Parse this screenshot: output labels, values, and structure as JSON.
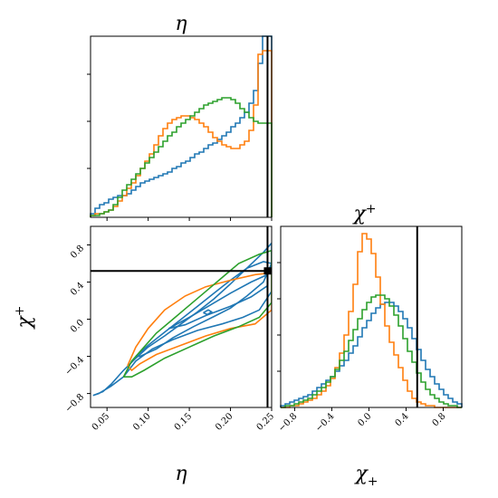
{
  "colors": {
    "blue": "#1f77b4",
    "orange": "#ff7f0e",
    "green": "#2ca02c",
    "truth": "#000000"
  },
  "chart_data": {
    "type": "corner",
    "parameters": [
      {
        "name": "eta",
        "label": "η",
        "range": [
          0.03,
          0.25
        ],
        "ticks": [
          0.05,
          0.1,
          0.15,
          0.2,
          0.25
        ],
        "tick_labels": [
          "0.05",
          "0.10",
          "0.15",
          "0.20",
          "0.25"
        ],
        "truth": 0.245
      },
      {
        "name": "chi_plus",
        "label": "χ",
        "label_sup": "+",
        "label_sub": "+",
        "range": [
          -0.95,
          1.0
        ],
        "ticks": [
          -0.8,
          -0.4,
          0.0,
          0.4,
          0.8
        ],
        "tick_labels": [
          "−0.8",
          "−0.4",
          "0.0",
          "0.4",
          "0.8"
        ],
        "truth": 0.52
      }
    ],
    "panels": {
      "eta_marginal": {
        "title_main": "η",
        "bins": [
          0.03,
          0.25,
          40
        ],
        "ylim": [
          0,
          1.0
        ],
        "series": [
          {
            "color_key": "blue",
            "values": [
              0.02,
              0.05,
              0.07,
              0.08,
              0.1,
              0.11,
              0.12,
              0.12,
              0.13,
              0.15,
              0.17,
              0.19,
              0.2,
              0.21,
              0.22,
              0.23,
              0.24,
              0.25,
              0.27,
              0.28,
              0.3,
              0.31,
              0.33,
              0.35,
              0.36,
              0.38,
              0.4,
              0.41,
              0.43,
              0.45,
              0.47,
              0.5,
              0.52,
              0.55,
              0.58,
              0.63,
              0.7,
              0.85,
              1.0,
              1.0
            ]
          },
          {
            "color_key": "orange",
            "values": [
              0.01,
              0.02,
              0.02,
              0.03,
              0.04,
              0.06,
              0.09,
              0.12,
              0.16,
              0.19,
              0.23,
              0.27,
              0.31,
              0.35,
              0.4,
              0.45,
              0.49,
              0.52,
              0.54,
              0.55,
              0.56,
              0.56,
              0.55,
              0.54,
              0.52,
              0.5,
              0.47,
              0.44,
              0.42,
              0.4,
              0.39,
              0.38,
              0.38,
              0.4,
              0.42,
              0.48,
              0.62,
              0.9,
              0.92,
              0.92
            ]
          },
          {
            "color_key": "green",
            "values": [
              0.01,
              0.01,
              0.02,
              0.03,
              0.04,
              0.07,
              0.11,
              0.15,
              0.18,
              0.21,
              0.24,
              0.27,
              0.3,
              0.33,
              0.36,
              0.39,
              0.42,
              0.45,
              0.47,
              0.5,
              0.52,
              0.54,
              0.56,
              0.58,
              0.6,
              0.62,
              0.63,
              0.64,
              0.65,
              0.66,
              0.66,
              0.65,
              0.63,
              0.6,
              0.58,
              0.55,
              0.53,
              0.52,
              0.52,
              0.52
            ]
          }
        ]
      },
      "chi_marginal": {
        "title_main": "χ",
        "title_sup": "+",
        "bins": [
          -0.95,
          1.0,
          40
        ],
        "ylim": [
          0,
          1.0
        ],
        "series": [
          {
            "color_key": "blue",
            "values": [
              0.01,
              0.02,
              0.03,
              0.04,
              0.05,
              0.06,
              0.07,
              0.09,
              0.11,
              0.13,
              0.15,
              0.17,
              0.2,
              0.23,
              0.26,
              0.3,
              0.34,
              0.39,
              0.44,
              0.48,
              0.52,
              0.55,
              0.57,
              0.58,
              0.58,
              0.56,
              0.53,
              0.49,
              0.44,
              0.38,
              0.32,
              0.26,
              0.21,
              0.17,
              0.13,
              0.1,
              0.07,
              0.05,
              0.03,
              0.02
            ]
          },
          {
            "color_key": "orange",
            "values": [
              0.0,
              0.0,
              0.01,
              0.01,
              0.02,
              0.03,
              0.04,
              0.05,
              0.07,
              0.09,
              0.12,
              0.16,
              0.22,
              0.3,
              0.4,
              0.53,
              0.68,
              0.86,
              0.96,
              0.93,
              0.85,
              0.72,
              0.57,
              0.45,
              0.36,
              0.29,
              0.22,
              0.15,
              0.09,
              0.05,
              0.03,
              0.02,
              0.01,
              0.01,
              0.0,
              0.0,
              0.0,
              0.0,
              0.0,
              0.0
            ]
          },
          {
            "color_key": "green",
            "values": [
              0.0,
              0.01,
              0.01,
              0.02,
              0.03,
              0.04,
              0.05,
              0.07,
              0.09,
              0.11,
              0.14,
              0.17,
              0.21,
              0.26,
              0.31,
              0.37,
              0.43,
              0.49,
              0.54,
              0.58,
              0.61,
              0.62,
              0.62,
              0.6,
              0.56,
              0.51,
              0.45,
              0.38,
              0.31,
              0.25,
              0.19,
              0.14,
              0.1,
              0.07,
              0.05,
              0.03,
              0.02,
              0.01,
              0.01,
              0.0
            ]
          }
        ]
      },
      "joint": {
        "contours": [
          {
            "color_key": "blue",
            "points": [
              [
                0.033,
                -0.82
              ],
              [
                0.045,
                -0.78
              ],
              [
                0.055,
                -0.7
              ],
              [
                0.07,
                -0.55
              ],
              [
                0.085,
                -0.42
              ],
              [
                0.1,
                -0.3
              ],
              [
                0.12,
                -0.18
              ],
              [
                0.14,
                -0.05
              ],
              [
                0.16,
                0.08
              ],
              [
                0.18,
                0.22
              ],
              [
                0.2,
                0.38
              ],
              [
                0.22,
                0.55
              ],
              [
                0.24,
                0.72
              ],
              [
                0.25,
                0.82
              ],
              [
                0.25,
                0.3
              ],
              [
                0.235,
                0.1
              ],
              [
                0.215,
                0.02
              ],
              [
                0.19,
                -0.05
              ],
              [
                0.16,
                -0.12
              ],
              [
                0.13,
                -0.22
              ],
              [
                0.105,
                -0.32
              ],
              [
                0.085,
                -0.45
              ],
              [
                0.07,
                -0.62
              ],
              [
                0.055,
                -0.72
              ],
              [
                0.04,
                -0.8
              ],
              [
                0.033,
                -0.82
              ]
            ]
          },
          {
            "color_key": "blue",
            "points": [
              [
                0.085,
                -0.4
              ],
              [
                0.1,
                -0.28
              ],
              [
                0.12,
                -0.14
              ],
              [
                0.14,
                0.0
              ],
              [
                0.16,
                0.14
              ],
              [
                0.18,
                0.28
              ],
              [
                0.2,
                0.42
              ],
              [
                0.22,
                0.55
              ],
              [
                0.24,
                0.62
              ],
              [
                0.25,
                0.6
              ],
              [
                0.24,
                0.4
              ],
              [
                0.22,
                0.25
              ],
              [
                0.2,
                0.12
              ],
              [
                0.18,
                0.03
              ],
              [
                0.155,
                -0.08
              ],
              [
                0.13,
                -0.2
              ],
              [
                0.11,
                -0.32
              ],
              [
                0.09,
                -0.4
              ],
              [
                0.085,
                -0.4
              ]
            ]
          },
          {
            "color_key": "blue",
            "points": [
              [
                0.125,
                -0.1
              ],
              [
                0.15,
                0.02
              ],
              [
                0.175,
                0.15
              ],
              [
                0.2,
                0.28
              ],
              [
                0.225,
                0.4
              ],
              [
                0.245,
                0.48
              ],
              [
                0.245,
                0.36
              ],
              [
                0.225,
                0.24
              ],
              [
                0.2,
                0.14
              ],
              [
                0.17,
                0.04
              ],
              [
                0.145,
                -0.06
              ],
              [
                0.125,
                -0.1
              ]
            ]
          },
          {
            "color_key": "blue",
            "points": [
              [
                0.167,
                0.07
              ],
              [
                0.173,
                0.1
              ],
              [
                0.177,
                0.08
              ],
              [
                0.172,
                0.05
              ],
              [
                0.167,
                0.07
              ]
            ]
          },
          {
            "color_key": "orange",
            "points": [
              [
                0.075,
                -0.5
              ],
              [
                0.085,
                -0.3
              ],
              [
                0.1,
                -0.1
              ],
              [
                0.12,
                0.1
              ],
              [
                0.145,
                0.25
              ],
              [
                0.17,
                0.35
              ],
              [
                0.2,
                0.42
              ],
              [
                0.23,
                0.48
              ],
              [
                0.25,
                0.5
              ],
              [
                0.25,
                0.1
              ],
              [
                0.23,
                -0.05
              ],
              [
                0.2,
                -0.1
              ],
              [
                0.17,
                -0.18
              ],
              [
                0.14,
                -0.28
              ],
              [
                0.11,
                -0.38
              ],
              [
                0.09,
                -0.48
              ],
              [
                0.08,
                -0.55
              ],
              [
                0.075,
                -0.5
              ]
            ]
          },
          {
            "color_key": "green",
            "points": [
              [
                0.07,
                -0.62
              ],
              [
                0.08,
                -0.45
              ],
              [
                0.095,
                -0.3
              ],
              [
                0.11,
                -0.15
              ],
              [
                0.13,
                0.0
              ],
              [
                0.15,
                0.15
              ],
              [
                0.17,
                0.3
              ],
              [
                0.19,
                0.45
              ],
              [
                0.21,
                0.6
              ],
              [
                0.235,
                0.7
              ],
              [
                0.25,
                0.74
              ],
              [
                0.25,
                0.18
              ],
              [
                0.235,
                0.02
              ],
              [
                0.21,
                -0.08
              ],
              [
                0.18,
                -0.18
              ],
              [
                0.15,
                -0.3
              ],
              [
                0.12,
                -0.42
              ],
              [
                0.095,
                -0.55
              ],
              [
                0.08,
                -0.62
              ],
              [
                0.07,
                -0.62
              ]
            ]
          }
        ]
      }
    }
  }
}
